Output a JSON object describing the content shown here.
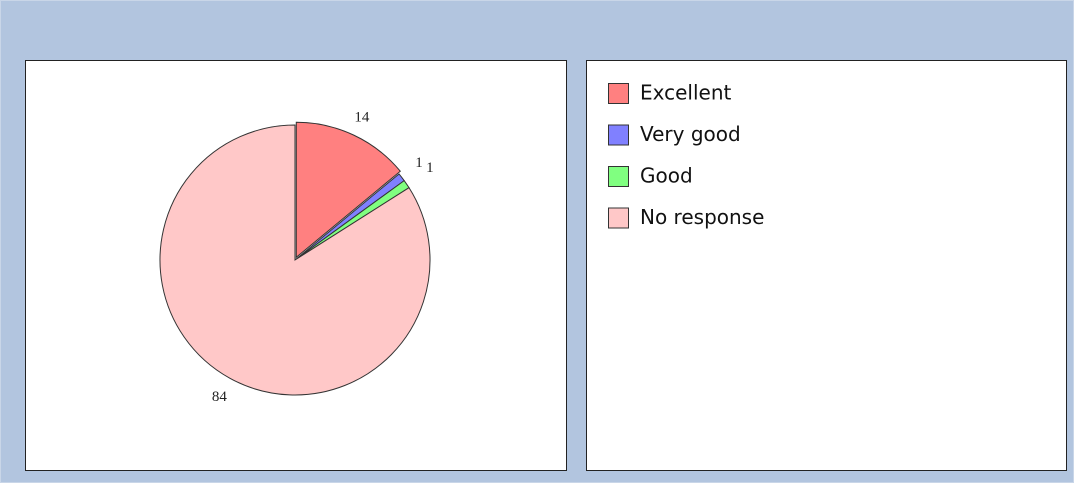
{
  "chart_data": {
    "type": "pie",
    "categories": [
      "Excellent",
      "Very good",
      "Good",
      "No response"
    ],
    "values": [
      14,
      1,
      1,
      84
    ],
    "colors": [
      "#ff8080",
      "#8080ff",
      "#80ff80",
      "#ffc8c8"
    ]
  }
}
